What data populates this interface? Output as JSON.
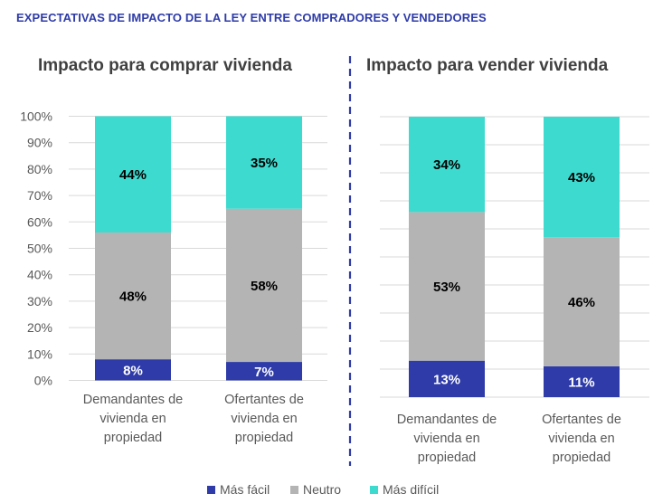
{
  "title": "EXPECTATIVAS DE IMPACTO DE LA LEY ENTRE COMPRADORES Y VENDEDORES",
  "colors": {
    "title": "#2E3BA8",
    "mas_facil": "#2E3BA8",
    "neutro": "#B4B4B4",
    "mas_dificil": "#3DDACF",
    "divider": "#2E3BA8"
  },
  "chart_data": [
    {
      "type": "bar",
      "stacked": true,
      "title": "Impacto para comprar vivienda",
      "categories": [
        [
          "Demandantes de",
          "vivienda en",
          "propiedad"
        ],
        [
          "Ofertantes de",
          "vivienda en",
          "propiedad"
        ]
      ],
      "series": [
        {
          "name": "Más fácil",
          "values": [
            8,
            7
          ],
          "labels": [
            "8%",
            "7%"
          ]
        },
        {
          "name": "Neutro",
          "values": [
            48,
            58
          ],
          "labels": [
            "48%",
            "58%"
          ]
        },
        {
          "name": "Más difícil",
          "values": [
            44,
            35
          ],
          "labels": [
            "44%",
            "35%"
          ]
        }
      ],
      "ylim": [
        0,
        100
      ],
      "yticks": [
        "0%",
        "10%",
        "20%",
        "30%",
        "40%",
        "50%",
        "60%",
        "70%",
        "80%",
        "90%",
        "100%"
      ],
      "grid": true
    },
    {
      "type": "bar",
      "stacked": true,
      "title": "Impacto para vender vivienda",
      "categories": [
        [
          "Demandantes de",
          "vivienda en",
          "propiedad"
        ],
        [
          "Ofertantes de",
          "vivienda en",
          "propiedad"
        ]
      ],
      "series": [
        {
          "name": "Más fácil",
          "values": [
            13,
            11
          ],
          "labels": [
            "13%",
            "11%"
          ]
        },
        {
          "name": "Neutro",
          "values": [
            53,
            46
          ],
          "labels": [
            "53%",
            "46%"
          ]
        },
        {
          "name": "Más difícil",
          "values": [
            34,
            43
          ],
          "labels": [
            "34%",
            "43%"
          ]
        }
      ],
      "ylim": [
        0,
        100
      ],
      "grid": true
    }
  ],
  "legend": {
    "position": "bottom",
    "items": [
      "Más fácil",
      "Neutro",
      "Más difícil"
    ]
  }
}
